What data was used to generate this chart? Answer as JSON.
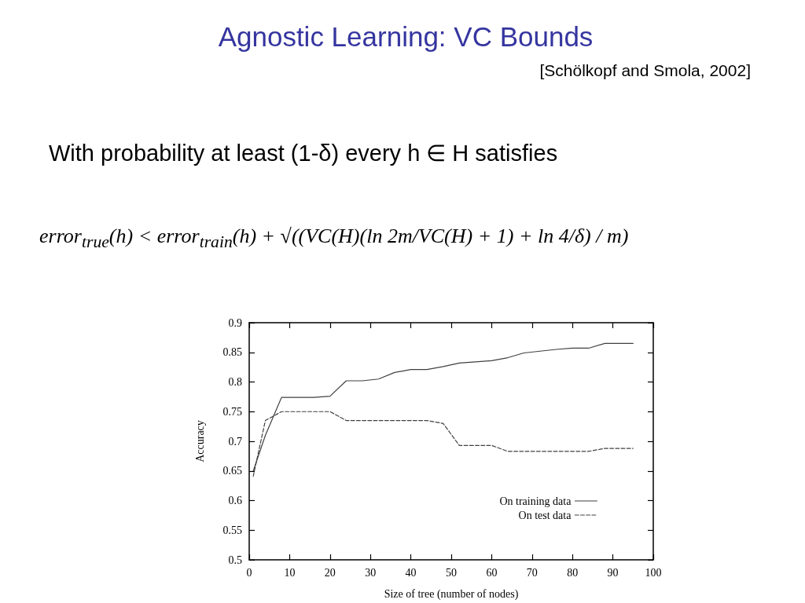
{
  "chart_data": {
    "type": "line",
    "title": "Agnostic Learning: VC Bounds",
    "subtitle": "[Schölkopf and Smola, 2002]",
    "annotations": [
      "With probability at least (1-δ) every h ∈ H satisfies",
      "error$_{true}$(h) < error$_{train}$(h) + √((VC(H)(ln 2m/VC(H) + 1) + ln 4/δ) / m)"
    ],
    "xlabel": "Size of tree (number of nodes)",
    "ylabel": "Accuracy",
    "series": [
      {
        "name": "On training data",
        "color": "#404040",
        "line_style": "solid",
        "x": [
          1,
          4,
          8,
          12,
          16,
          20,
          24,
          28,
          32,
          36,
          40,
          44,
          48,
          52,
          56,
          60,
          64,
          68,
          72,
          76,
          80,
          84,
          88,
          95
        ],
        "values": [
          0.65,
          0.71,
          0.774,
          0.774,
          0.774,
          0.776,
          0.802,
          0.802,
          0.805,
          0.816,
          0.821,
          0.821,
          0.826,
          0.832,
          0.834,
          0.836,
          0.841,
          0.849,
          0.852,
          0.855,
          0.857,
          0.857,
          0.865,
          0.865
        ]
      },
      {
        "name": "On test data",
        "color": "#404040",
        "line_style": "dashed",
        "x": [
          1,
          4,
          8,
          20,
          24,
          44,
          48,
          52,
          60,
          64,
          84,
          88,
          95
        ],
        "values": [
          0.641,
          0.735,
          0.75,
          0.75,
          0.735,
          0.735,
          0.73,
          0.693,
          0.693,
          0.683,
          0.683,
          0.688,
          0.688
        ]
      }
    ],
    "xlim": [
      0,
      100
    ],
    "xticks": [
      0,
      10,
      20,
      30,
      40,
      50,
      60,
      70,
      80,
      90,
      100
    ],
    "ylim": [
      0.5,
      0.9
    ],
    "yticks": [
      0.5,
      0.55,
      0.6,
      0.65,
      0.7,
      0.75,
      0.8,
      0.85,
      0.9
    ],
    "grid": false,
    "legend": "bottom right",
    "marker": "none"
  }
}
